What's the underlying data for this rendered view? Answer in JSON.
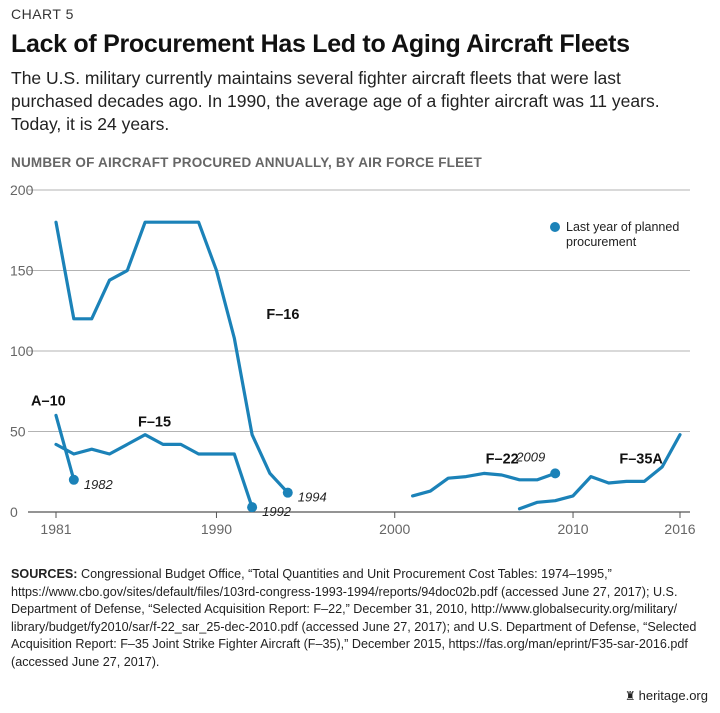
{
  "header": {
    "kicker": "CHART 5",
    "title": "Lack of Procurement Has Led to Aging Aircraft Fleets",
    "subtitle": "The U.S. military currently maintains several fighter aircraft fleets that were last purchased decades ago. In 1990, the average age of a fighter aircraft was 11 years. Today, it is 24 years."
  },
  "chart_label": "NUMBER OF AIRCRAFT PROCURED ANNUALLY, BY AIR FORCE FLEET",
  "legend": {
    "label_line1": "Last year of planned",
    "label_line2": "procurement"
  },
  "colors": {
    "series": "#1b82b8",
    "grid": "#9a9a9a",
    "axis_text": "#666666"
  },
  "chart_data": {
    "type": "line",
    "xlim": [
      1981,
      2016
    ],
    "ylim": [
      0,
      200
    ],
    "x_ticks": [
      1981,
      1990,
      2000,
      2010,
      2016
    ],
    "y_ticks": [
      0,
      50,
      100,
      150,
      200
    ],
    "grid": true,
    "legend_position": "top-right",
    "series": [
      {
        "name": "A–10",
        "x": [
          1981,
          1982
        ],
        "y": [
          60,
          20
        ]
      },
      {
        "name": "F–15",
        "x": [
          1981,
          1982,
          1983,
          1984,
          1985,
          1986,
          1987,
          1988,
          1989,
          1990,
          1991,
          1992
        ],
        "y": [
          42,
          36,
          39,
          36,
          42,
          48,
          42,
          42,
          36,
          36,
          36,
          3
        ]
      },
      {
        "name": "F–16",
        "x": [
          1981,
          1982,
          1983,
          1984,
          1985,
          1986,
          1987,
          1988,
          1989,
          1990,
          1991,
          1992,
          1993,
          1994
        ],
        "y": [
          180,
          120,
          120,
          144,
          150,
          180,
          180,
          180,
          180,
          150,
          108,
          48,
          24,
          12
        ]
      },
      {
        "name": "F–22",
        "x": [
          2001,
          2002,
          2003,
          2004,
          2005,
          2006,
          2007,
          2008,
          2009
        ],
        "y": [
          10,
          13,
          21,
          22,
          24,
          23,
          20,
          20,
          24
        ]
      },
      {
        "name": "F–35A",
        "x": [
          2007,
          2008,
          2009,
          2010,
          2011,
          2012,
          2013,
          2014,
          2015,
          2016
        ],
        "y": [
          2,
          6,
          7,
          10,
          22,
          18,
          19,
          19,
          28,
          48
        ]
      }
    ],
    "series_labels": [
      "A–10",
      "F–15",
      "F–16",
      "F–22",
      "F–35A"
    ],
    "end_markers": [
      {
        "series": "A–10",
        "x": 1982,
        "y": 20,
        "label": "1982"
      },
      {
        "series": "F–15",
        "x": 1992,
        "y": 3,
        "label": "1992"
      },
      {
        "series": "F–16",
        "x": 1994,
        "y": 12,
        "label": "1994"
      },
      {
        "series": "F–22",
        "x": 2009,
        "y": 24,
        "label": "2009"
      }
    ]
  },
  "sources": {
    "heading": "SOURCES:",
    "lines": [
      "Congressional Budget Office, “Total Quantities and Unit Procurement Cost Tables: 1974–1995,”",
      "https://www.cbo.gov/sites/default/files/103rd-congress-1993-1994/reports/94doc02b.pdf (accessed June 27, 2017); U.S.",
      "Department of Defense, “Selected Acquisition Report: F–22,” December 31, 2010, http://www.globalsecurity.org/military/",
      "library/budget/fy2010/sar/f-22_sar_25-dec-2010.pdf (accessed June 27, 2017); and U.S. Department of Defense, “Selected",
      "Acquisition Report: F–35 Joint Strike Fighter Aircraft (F–35),” December 2015, https://fas.org/man/eprint/F35-sar-2016.pdf",
      "(accessed June 27, 2017)."
    ]
  },
  "brand": {
    "name": "heritage.org",
    "icon": "heritage-logo-icon"
  }
}
